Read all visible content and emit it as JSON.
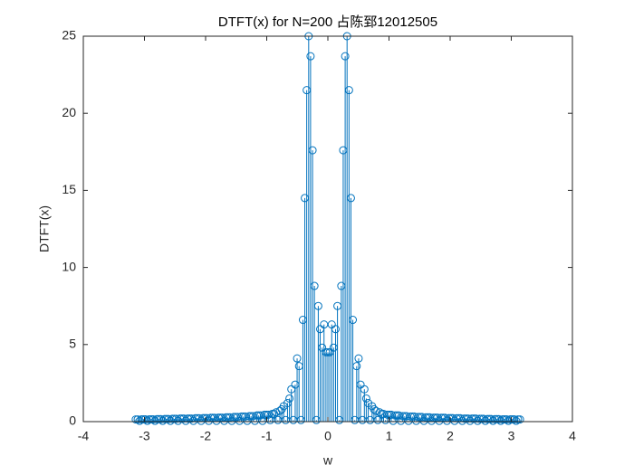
{
  "chart_data": {
    "type": "stem",
    "title": "DTFT(x) for N=200 占陈郅12012505",
    "xlabel": "w",
    "ylabel": "DTFT(x)",
    "xlim": [
      -4,
      4
    ],
    "xticks": [
      -4,
      -3,
      -2,
      -1,
      0,
      1,
      2,
      3,
      4
    ],
    "ylim": [
      0,
      25
    ],
    "yticks": [
      0,
      5,
      10,
      15,
      20,
      25
    ],
    "color": "#0072bd",
    "box": true,
    "x": [
      -3.142,
      -3.11,
      -3.079,
      -3.047,
      -3.016,
      -2.985,
      -2.953,
      -2.922,
      -2.89,
      -2.859,
      -2.827,
      -2.796,
      -2.765,
      -2.733,
      -2.702,
      -2.67,
      -2.639,
      -2.608,
      -2.576,
      -2.545,
      -2.513,
      -2.482,
      -2.45,
      -2.419,
      -2.388,
      -2.356,
      -2.325,
      -2.293,
      -2.262,
      -2.231,
      -2.199,
      -2.168,
      -2.136,
      -2.105,
      -2.073,
      -2.042,
      -2.011,
      -1.979,
      -1.948,
      -1.916,
      -1.885,
      -1.854,
      -1.822,
      -1.791,
      -1.759,
      -1.728,
      -1.696,
      -1.665,
      -1.634,
      -1.602,
      -1.571,
      -1.539,
      -1.508,
      -1.477,
      -1.445,
      -1.414,
      -1.382,
      -1.351,
      -1.319,
      -1.288,
      -1.257,
      -1.225,
      -1.194,
      -1.162,
      -1.131,
      -1.1,
      -1.068,
      -1.037,
      -1.005,
      -0.974,
      -0.942,
      -0.911,
      -0.88,
      -0.848,
      -0.817,
      -0.785,
      -0.754,
      -0.723,
      -0.691,
      -0.66,
      -0.628,
      -0.597,
      -0.565,
      -0.534,
      -0.503,
      -0.471,
      -0.44,
      -0.408,
      -0.377,
      -0.346,
      -0.314,
      -0.283,
      -0.251,
      -0.22,
      -0.188,
      -0.157,
      -0.126,
      -0.094,
      -0.063,
      -0.031,
      0,
      0.031,
      0.063,
      0.094,
      0.126,
      0.157,
      0.188,
      0.22,
      0.251,
      0.283,
      0.314,
      0.346,
      0.377,
      0.408,
      0.44,
      0.471,
      0.503,
      0.534,
      0.565,
      0.597,
      0.628,
      0.66,
      0.691,
      0.723,
      0.754,
      0.785,
      0.817,
      0.848,
      0.88,
      0.911,
      0.942,
      0.974,
      1.005,
      1.037,
      1.068,
      1.1,
      1.131,
      1.162,
      1.194,
      1.225,
      1.257,
      1.288,
      1.319,
      1.351,
      1.382,
      1.414,
      1.445,
      1.477,
      1.508,
      1.539,
      1.571,
      1.602,
      1.634,
      1.665,
      1.696,
      1.728,
      1.759,
      1.791,
      1.822,
      1.854,
      1.885,
      1.916,
      1.948,
      1.979,
      2.011,
      2.042,
      2.073,
      2.105,
      2.136,
      2.168,
      2.199,
      2.231,
      2.262,
      2.293,
      2.325,
      2.356,
      2.388,
      2.419,
      2.45,
      2.482,
      2.513,
      2.545,
      2.576,
      2.608,
      2.639,
      2.67,
      2.702,
      2.733,
      2.765,
      2.796,
      2.827,
      2.859,
      2.89,
      2.922,
      2.953,
      2.985,
      3.016,
      3.047,
      3.079,
      3.11,
      3.142
    ],
    "values": [
      0.14,
      0.14,
      0.05,
      0.15,
      0.15,
      0.15,
      0.05,
      0.15,
      0.15,
      0.15,
      0.05,
      0.16,
      0.16,
      0.16,
      0.05,
      0.17,
      0.17,
      0.17,
      0.05,
      0.18,
      0.18,
      0.18,
      0.05,
      0.2,
      0.2,
      0.2,
      0.05,
      0.2,
      0.2,
      0.2,
      0.05,
      0.22,
      0.22,
      0.22,
      0.05,
      0.23,
      0.23,
      0.23,
      0.05,
      0.25,
      0.25,
      0.25,
      0.05,
      0.26,
      0.26,
      0.26,
      0.05,
      0.28,
      0.28,
      0.28,
      0.05,
      0.3,
      0.3,
      0.3,
      0.05,
      0.33,
      0.33,
      0.33,
      0.05,
      0.35,
      0.35,
      0.35,
      0.05,
      0.4,
      0.4,
      0.4,
      0.05,
      0.45,
      0.45,
      0.45,
      0.1,
      0.5,
      0.5,
      0.6,
      0.1,
      0.7,
      0.8,
      1.0,
      0.1,
      1.2,
      1.5,
      2.1,
      0.1,
      2.4,
      4.1,
      3.6,
      0.1,
      6.6,
      14.5,
      21.5,
      25.0,
      23.7,
      17.6,
      8.8,
      0.1,
      7.5,
      6.0,
      4.8,
      6.3,
      4.5,
      4.5,
      4.5,
      6.3,
      4.8,
      6.0,
      7.5,
      0.1,
      8.8,
      17.6,
      23.7,
      25.0,
      21.5,
      14.5,
      6.6,
      0.1,
      3.6,
      4.1,
      2.4,
      0.1,
      2.1,
      1.5,
      1.2,
      0.1,
      1.0,
      0.8,
      0.7,
      0.1,
      0.6,
      0.5,
      0.5,
      0.1,
      0.45,
      0.45,
      0.45,
      0.05,
      0.4,
      0.4,
      0.4,
      0.05,
      0.35,
      0.35,
      0.35,
      0.05,
      0.33,
      0.33,
      0.33,
      0.05,
      0.3,
      0.3,
      0.3,
      0.05,
      0.28,
      0.28,
      0.28,
      0.05,
      0.26,
      0.26,
      0.26,
      0.05,
      0.25,
      0.25,
      0.25,
      0.05,
      0.23,
      0.23,
      0.23,
      0.05,
      0.22,
      0.22,
      0.22,
      0.05,
      0.2,
      0.2,
      0.2,
      0.05,
      0.2,
      0.2,
      0.2,
      0.05,
      0.18,
      0.18,
      0.18,
      0.05,
      0.17,
      0.17,
      0.17,
      0.05,
      0.16,
      0.16,
      0.16,
      0.05,
      0.15,
      0.15,
      0.15,
      0.05,
      0.15,
      0.15,
      0.15,
      0.05,
      0.14,
      0.14
    ]
  }
}
